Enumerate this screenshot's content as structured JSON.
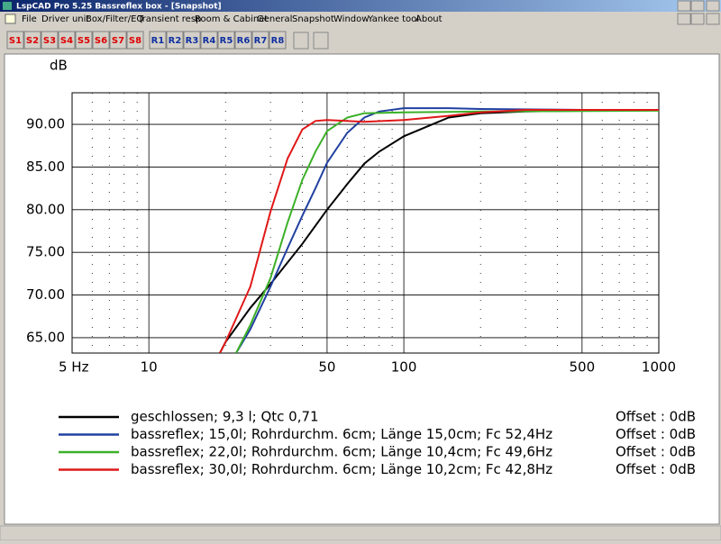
{
  "window": {
    "title": "LspCAD Pro 5.25 Bassreflex box - [Snapshot]",
    "menu": [
      "File",
      "Driver unit",
      "Box/Filter/EQ",
      "Transient resp",
      "Room & Cabinet",
      "General",
      "Snapshot",
      "Window",
      "Yankee tool",
      "About"
    ]
  },
  "toolbar": {
    "snapshots": [
      "S1",
      "S2",
      "S3",
      "S4",
      "S5",
      "S6",
      "S7",
      "S8"
    ],
    "references": [
      "R1",
      "R2",
      "R3",
      "R4",
      "R5",
      "R6",
      "R7",
      "R8"
    ]
  },
  "chart_data": {
    "type": "line",
    "y_label": "dB",
    "x_scale": "log",
    "xlim": [
      5,
      1000
    ],
    "xticks": [
      {
        "value": 5,
        "label": "5 Hz"
      },
      10,
      50,
      100,
      500,
      1000
    ],
    "x_minor_grid": [
      6,
      7,
      8,
      9,
      20,
      30,
      40,
      60,
      70,
      80,
      90,
      200,
      300,
      400,
      600,
      700,
      800,
      900
    ],
    "ylim": [
      63.2,
      93.7
    ],
    "yticks": [
      {
        "value": 65,
        "label": "65.00"
      },
      {
        "value": 70,
        "label": "70.00"
      },
      {
        "value": 75,
        "label": "75.00"
      },
      {
        "value": 80,
        "label": "80.00"
      },
      {
        "value": 85,
        "label": "85.00"
      },
      {
        "value": 90,
        "label": "90.00"
      }
    ],
    "grid": true,
    "series": [
      {
        "name": "geschlossen; 9,3 l; Qtc 0,71",
        "offset": "Offset : 0dB",
        "color": "#000000",
        "x": [
          19,
          20,
          25,
          30,
          40,
          50,
          60,
          70,
          80,
          100,
          150,
          200,
          300,
          500,
          1000
        ],
        "values": [
          63.2,
          64.5,
          68.5,
          71.3,
          76,
          80,
          83,
          85.4,
          86.8,
          88.6,
          90.8,
          91.3,
          91.5,
          91.6,
          91.7
        ]
      },
      {
        "name": "bassreflex; 15,0l; Rohrdurchm. 6cm; Länge 15,0cm; Fc 52,4Hz",
        "offset": "Offset : 0dB",
        "color": "#2040a0",
        "x": [
          22,
          25,
          30,
          35,
          40,
          45,
          50,
          60,
          70,
          80,
          100,
          150,
          200,
          500,
          1000
        ],
        "values": [
          63.2,
          66,
          71,
          75.5,
          79.3,
          82.5,
          85.5,
          89,
          90.8,
          91.5,
          91.9,
          91.9,
          91.8,
          91.7,
          91.7
        ]
      },
      {
        "name": "bassreflex; 22,0l; Rohrdurchm. 6cm; Länge 10,4cm; Fc 49,6Hz",
        "offset": "Offset : 0dB",
        "color": "#3cb028",
        "x": [
          22,
          25,
          30,
          35,
          40,
          45,
          50,
          60,
          70,
          100,
          200,
          1000
        ],
        "values": [
          63.2,
          66.5,
          72,
          78.5,
          83.5,
          86.8,
          89.2,
          90.8,
          91.3,
          91.4,
          91.5,
          91.6
        ]
      },
      {
        "name": "bassreflex; 30,0l; Rohrdurchm. 6cm; Länge 10,2cm; Fc 42,8Hz",
        "offset": "Offset : 0dB",
        "color": "#e01818",
        "x": [
          19,
          20,
          25,
          30,
          35,
          40,
          45,
          50,
          70,
          100,
          150,
          200,
          300,
          1000
        ],
        "values": [
          63.2,
          64.5,
          71,
          79.8,
          86,
          89.4,
          90.4,
          90.5,
          90.3,
          90.5,
          91,
          91.4,
          91.7,
          91.7
        ]
      }
    ]
  }
}
